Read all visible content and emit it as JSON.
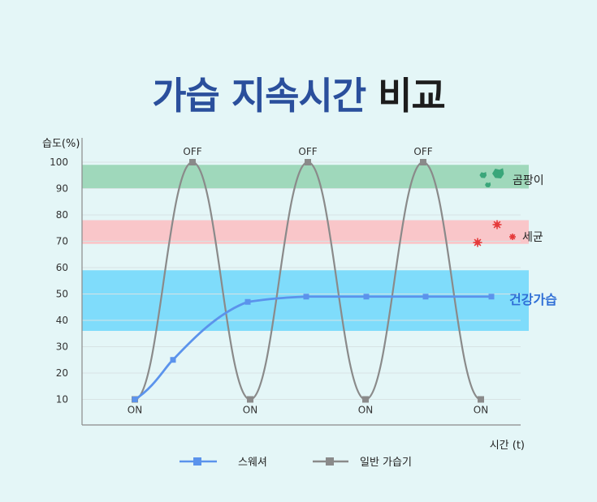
{
  "title": {
    "part1": "가습 지속시간",
    "part2": "비교"
  },
  "colors": {
    "swasher": "#5b93ec",
    "normal": "#8a8a8a",
    "mold_zone": "#9fd8bb",
    "germ_zone": "#f9c6c9",
    "healthy_zone": "#7fdcfb",
    "mold_icon": "#3aa67a",
    "germ_icon": "#e53b3b"
  },
  "chart_data": {
    "type": "line",
    "ylabel": "습도(%)",
    "xlabel": "시간 (t)",
    "ylim": [
      0,
      110
    ],
    "yticks": [
      10,
      20,
      30,
      40,
      50,
      60,
      70,
      80,
      90,
      100
    ],
    "grid": true,
    "legend_placement": "bottom-center",
    "zones": [
      {
        "label": "곰팡이",
        "range": [
          90,
          99
        ],
        "icon": "mold-icon"
      },
      {
        "label": "세균",
        "range": [
          69,
          78
        ],
        "icon": "germ-icon"
      },
      {
        "label": "건강가습",
        "range": [
          36,
          59
        ]
      }
    ],
    "series": [
      {
        "name": "스웨셔",
        "x": [
          0,
          1,
          2,
          3,
          4,
          5,
          6
        ],
        "y": [
          10,
          25,
          47,
          49,
          49,
          49,
          49
        ]
      },
      {
        "name": "일반 가습기",
        "x": [
          0,
          1,
          2,
          3,
          4,
          5,
          6
        ],
        "y": [
          10,
          100,
          10,
          100,
          10,
          100,
          10
        ]
      }
    ],
    "annotations": [
      {
        "text": "ON",
        "x": 0,
        "y": 10
      },
      {
        "text": "OFF",
        "x": 1,
        "y": 100
      },
      {
        "text": "ON",
        "x": 2,
        "y": 10
      },
      {
        "text": "OFF",
        "x": 3,
        "y": 100
      },
      {
        "text": "ON",
        "x": 4,
        "y": 10
      },
      {
        "text": "OFF",
        "x": 5,
        "y": 100
      },
      {
        "text": "ON",
        "x": 6,
        "y": 10
      }
    ]
  }
}
